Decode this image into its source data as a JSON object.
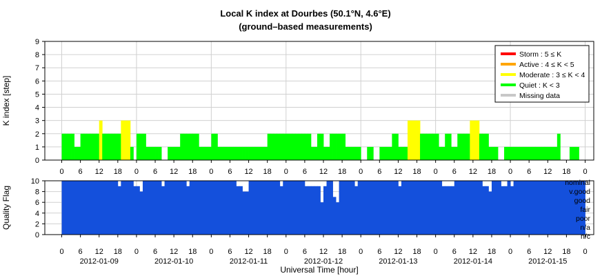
{
  "title": "Local K index at Dourbes (50.1°N, 4.6°E)",
  "subtitle": "(ground–based measurements)",
  "chart_data": [
    {
      "type": "bar",
      "ylabel": "K index [step]",
      "ylim": [
        0,
        9
      ],
      "yticks": [
        0,
        1,
        2,
        3,
        4,
        5,
        6,
        7,
        8,
        9
      ],
      "x_hours_start": 0,
      "x_hours_end": 168,
      "bin_hours": 1,
      "grid": true,
      "legend_position": "top-right",
      "legend": [
        {
          "label": "Storm : 5 ≤ K",
          "color": "#ff0000"
        },
        {
          "label": "Active : 4 ≤ K < 5",
          "color": "#ffa500"
        },
        {
          "label": "Moderate : 3 ≤ K < 4",
          "color": "#ffff00"
        },
        {
          "label": "Quiet : K < 3",
          "color": "#00ff00"
        },
        {
          "label": "Missing data",
          "color": "#c8c8c8"
        }
      ],
      "values": [
        2,
        2,
        2,
        2,
        1,
        1,
        2,
        2,
        2,
        2,
        2,
        2,
        3,
        2,
        2,
        2,
        2,
        2,
        2,
        3,
        3,
        3,
        1,
        0,
        2,
        2,
        2,
        1,
        1,
        1,
        1,
        1,
        0,
        0,
        1,
        1,
        1,
        1,
        2,
        2,
        2,
        2,
        2,
        2,
        1,
        1,
        1,
        1,
        2,
        2,
        1,
        1,
        1,
        1,
        1,
        1,
        1,
        1,
        1,
        1,
        1,
        1,
        1,
        1,
        1,
        1,
        2,
        2,
        2,
        2,
        2,
        2,
        2,
        2,
        2,
        2,
        2,
        2,
        2,
        2,
        1,
        1,
        2,
        2,
        1,
        1,
        2,
        2,
        2,
        2,
        2,
        1,
        1,
        1,
        1,
        1,
        0,
        0,
        1,
        1,
        0,
        0,
        1,
        1,
        1,
        1,
        2,
        2,
        1,
        1,
        1,
        3,
        3,
        3,
        3,
        2,
        2,
        2,
        2,
        2,
        2,
        1,
        1,
        2,
        2,
        1,
        1,
        2,
        2,
        2,
        2,
        3,
        3,
        3,
        2,
        2,
        2,
        1,
        1,
        1,
        0,
        0,
        1,
        1,
        1,
        1,
        1,
        1,
        1,
        1,
        1,
        1,
        1,
        1,
        1,
        1,
        1,
        1,
        1,
        2,
        0,
        0,
        0,
        1,
        1,
        1,
        0,
        0
      ]
    },
    {
      "type": "bar",
      "ylabel": "Quality Flag",
      "ylim": [
        0,
        10
      ],
      "yticks": [
        0,
        2,
        4,
        6,
        8,
        10
      ],
      "fill_color": "#1450dc",
      "quality_levels": [
        "nominal",
        "v.good",
        "good",
        "fair",
        "poor",
        "n/a",
        "n/c"
      ],
      "values": [
        10,
        10,
        10,
        10,
        10,
        10,
        10,
        10,
        10,
        10,
        10,
        10,
        10,
        10,
        10,
        10,
        10,
        10,
        9,
        10,
        10,
        10,
        10,
        9,
        9,
        8,
        10,
        10,
        10,
        10,
        10,
        10,
        9,
        10,
        10,
        10,
        10,
        10,
        10,
        10,
        9,
        10,
        10,
        10,
        10,
        10,
        10,
        10,
        10,
        10,
        10,
        10,
        10,
        10,
        10,
        10,
        9,
        9,
        8,
        8,
        10,
        10,
        10,
        10,
        10,
        10,
        10,
        10,
        10,
        10,
        9,
        10,
        10,
        10,
        10,
        10,
        10,
        10,
        9,
        9,
        9,
        9,
        9,
        6,
        9,
        10,
        10,
        7,
        6,
        10,
        10,
        10,
        10,
        10,
        9,
        10,
        10,
        10,
        10,
        10,
        10,
        10,
        10,
        10,
        10,
        10,
        10,
        10,
        9,
        10,
        10,
        10,
        10,
        10,
        10,
        10,
        10,
        10,
        10,
        10,
        10,
        10,
        9,
        9,
        9,
        9,
        10,
        10,
        10,
        10,
        10,
        10,
        10,
        10,
        10,
        9,
        9,
        8,
        10,
        10,
        10,
        9,
        9,
        10,
        9,
        10,
        10,
        10,
        10,
        10,
        10,
        10,
        10,
        10,
        10,
        10,
        10,
        10,
        10,
        10,
        10,
        10,
        10,
        10,
        10,
        10,
        10,
        10
      ]
    }
  ],
  "x_axis": {
    "hour_ticks": [
      "0",
      "6",
      "12",
      "18",
      "0",
      "6",
      "12",
      "18",
      "0",
      "6",
      "12",
      "18",
      "0",
      "6",
      "12",
      "18",
      "0",
      "6",
      "12",
      "18",
      "0",
      "6",
      "12",
      "18",
      "0",
      "6",
      "12",
      "18",
      "0"
    ],
    "dates": [
      "2012-01-09",
      "2012-01-10",
      "2012-01-11",
      "2012-01-12",
      "2012-01-13",
      "2012-01-14",
      "2012-01-15"
    ],
    "xlabel": "Universal Time [hour]"
  }
}
